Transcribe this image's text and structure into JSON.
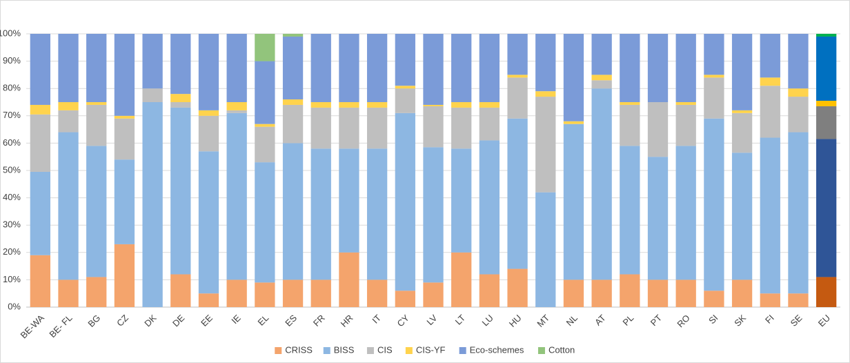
{
  "chart_data": {
    "type": "stacked_bar",
    "categories": [
      "BE-WA",
      "BE- FL",
      "BG",
      "CZ",
      "DK",
      "DE",
      "EE",
      "IE",
      "EL",
      "ES",
      "FR",
      "HR",
      "IT",
      "CY",
      "LV",
      "LT",
      "LU",
      "HU",
      "MT",
      "NL",
      "AT",
      "PL",
      "PT",
      "RO",
      "SI",
      "SK",
      "FI",
      "SE",
      "EU"
    ],
    "series": [
      {
        "name": "CRISS",
        "color": "#f4a46c",
        "highlight_color": "#c55a11",
        "values": [
          19,
          10,
          11,
          23,
          0,
          12,
          5,
          10,
          9,
          10,
          10,
          20,
          10,
          6,
          9,
          20,
          12,
          14,
          0,
          10,
          10,
          12,
          10,
          10,
          6,
          10,
          5,
          5,
          11
        ]
      },
      {
        "name": "BISS",
        "color": "#8db7e2",
        "highlight_color": "#2f5597",
        "values": [
          30.5,
          54,
          48,
          31,
          75,
          61,
          52,
          61,
          44,
          50,
          48,
          38,
          48,
          65,
          49.5,
          38,
          49,
          55,
          42,
          57,
          70,
          47,
          45,
          49,
          63,
          46.5,
          57,
          59,
          50.5
        ]
      },
      {
        "name": "CIS",
        "color": "#bfbfbf",
        "highlight_color": "#7f7f7f",
        "values": [
          21,
          8,
          15,
          15,
          5,
          2,
          13,
          1,
          13,
          14,
          15,
          15,
          15,
          9,
          15,
          15,
          12,
          15,
          35,
          0,
          3,
          15,
          20,
          15,
          15,
          14.5,
          19,
          13,
          12
        ]
      },
      {
        "name": "CIS-YF",
        "color": "#ffd34d",
        "highlight_color": "#ffc000",
        "values": [
          3.5,
          3,
          1,
          1,
          0,
          3,
          2,
          3,
          1,
          2,
          2,
          2,
          2,
          1,
          0.5,
          2,
          2,
          1,
          2,
          1,
          2,
          1,
          0,
          1,
          1,
          1,
          3,
          3,
          2
        ]
      },
      {
        "name": "Eco-schemes",
        "color": "#7b9bd8",
        "highlight_color": "#0070c0",
        "values": [
          26,
          25,
          25,
          30,
          20,
          22,
          28,
          25,
          23,
          23,
          25,
          25,
          25,
          19,
          26,
          25,
          25,
          15,
          21,
          32,
          15,
          25,
          25,
          25,
          15,
          28,
          16,
          20,
          23.5
        ]
      },
      {
        "name": "Cotton",
        "color": "#92c47c",
        "highlight_color": "#00b050",
        "values": [
          0,
          0,
          0,
          0,
          0,
          0,
          0,
          0,
          10,
          1,
          0,
          0,
          0,
          0,
          0,
          0,
          0,
          0,
          0,
          0,
          0,
          0,
          0,
          0,
          0,
          0,
          0,
          0,
          1
        ]
      }
    ],
    "highlight_category": "EU",
    "ylim": [
      0,
      100
    ],
    "yticks": [
      {
        "value": 0,
        "label": "0%"
      },
      {
        "value": 10,
        "label": "10%"
      },
      {
        "value": 20,
        "label": "20%"
      },
      {
        "value": 30,
        "label": "30%"
      },
      {
        "value": 40,
        "label": "40%"
      },
      {
        "value": 50,
        "label": "50%"
      },
      {
        "value": 60,
        "label": "60%"
      },
      {
        "value": 70,
        "label": "70%"
      },
      {
        "value": 80,
        "label": "80%"
      },
      {
        "value": 90,
        "label": "90%"
      },
      {
        "value": 100,
        "label": "100%"
      }
    ],
    "grid": true,
    "legend": "bottom"
  }
}
